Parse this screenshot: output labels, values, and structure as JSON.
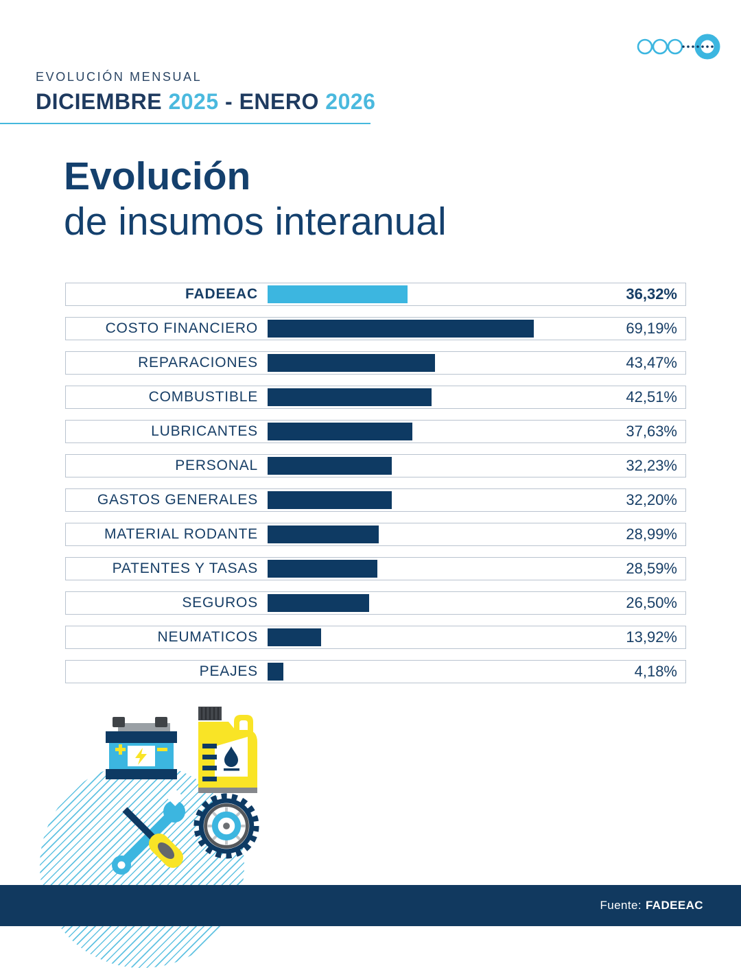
{
  "logo": {
    "name": "fadeeac-logo"
  },
  "header": {
    "kicker": "EVOLUCIÓN MENSUAL",
    "period": [
      {
        "text": "DICIEMBRE ",
        "accent": false
      },
      {
        "text": "2025",
        "accent": true
      },
      {
        "text": " - ENERO ",
        "accent": false
      },
      {
        "text": "2026",
        "accent": true
      }
    ]
  },
  "title": {
    "line1": "Evolución",
    "line2": "de insumos interanual"
  },
  "chart_data": {
    "type": "bar",
    "orientation": "horizontal",
    "title": "Evolución de insumos interanual",
    "categories": [
      "FADEEAC",
      "COSTO FINANCIERO",
      "REPARACIONES",
      "COMBUSTIBLE",
      "LUBRICANTES",
      "PERSONAL",
      "GASTOS GENERALES",
      "MATERIAL RODANTE",
      "PATENTES Y TASAS",
      "SEGUROS",
      "NEUMATICOS",
      "PEAJES"
    ],
    "values": [
      36.32,
      69.19,
      43.47,
      42.51,
      37.63,
      32.23,
      32.2,
      28.99,
      28.59,
      26.5,
      13.92,
      4.18
    ],
    "value_labels": [
      "36,32%",
      "69,19%",
      "43,47%",
      "42,51%",
      "37,63%",
      "32,23%",
      "32,20%",
      "28,99%",
      "28,59%",
      "26,50%",
      "13,92%",
      "4,18%"
    ],
    "highlight_index": 0,
    "xlim": [
      0,
      70
    ],
    "grid": false,
    "legend": "none",
    "bar_colors": {
      "default": "#0e3a63",
      "highlight": "#3cb6e0"
    }
  },
  "icons": [
    "battery-icon",
    "oil-can-icon",
    "tools-icon",
    "tire-icon"
  ],
  "colors": {
    "navy": "#0e3a63",
    "accent_blue": "#3cb6e0",
    "underline_blue": "#45b8dd",
    "yellow": "#f9e426",
    "row_border": "#b9c3cf",
    "footer_bg": "#11395f"
  },
  "footer": {
    "source_label": "Fuente:",
    "source_value": "FADEEAC"
  }
}
